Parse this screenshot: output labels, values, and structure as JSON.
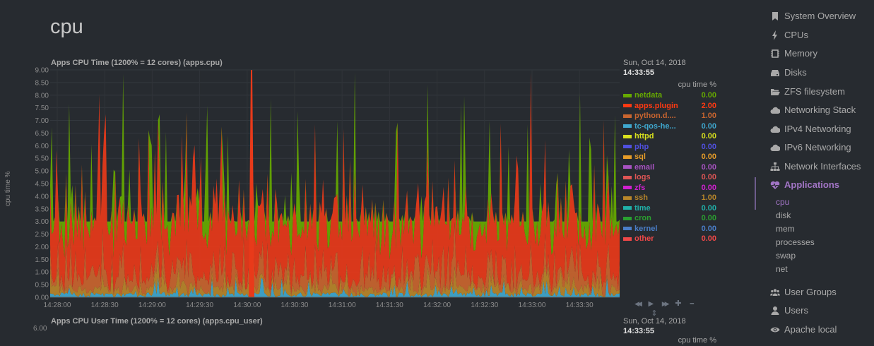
{
  "page": {
    "title": "cpu"
  },
  "charts": [
    {
      "title": "Apps CPU Time (1200% = 12 cores) (apps.cpu)",
      "ylabel": "cpu time %",
      "ylim": [
        0,
        9
      ],
      "yticks": [
        "0.00",
        "0.50",
        "1.00",
        "1.50",
        "2.00",
        "2.50",
        "3.00",
        "3.50",
        "4.00",
        "4.50",
        "5.00",
        "5.50",
        "6.00",
        "6.50",
        "7.00",
        "7.50",
        "8.00",
        "8.50",
        "9.00"
      ],
      "xticks": [
        "14:28:00",
        "14:28:30",
        "14:29:00",
        "14:29:30",
        "14:30:00",
        "14:30:30",
        "14:31:00",
        "14:31:30",
        "14:32:00",
        "14:32:30",
        "14:33:00",
        "14:33:30"
      ],
      "legend_date": "Sun, Oct 14, 2018",
      "legend_time": "14:33:55",
      "legend_units": "cpu time %"
    },
    {
      "title": "Apps CPU User Time (1200% = 12 cores) (apps.cpu_user)",
      "ytick_top": "6.00",
      "legend_date": "Sun, Oct 14, 2018",
      "legend_time": "14:33:55",
      "legend_units": "cpu time %"
    }
  ],
  "chart_data": {
    "type": "area",
    "title": "Apps CPU Time (1200% = 12 cores) (apps.cpu)",
    "ylabel": "cpu time %",
    "ylim": [
      0,
      9
    ],
    "x_range": [
      "14:28:00",
      "14:33:55"
    ],
    "stacked": true,
    "series": [
      {
        "name": "netdata",
        "color": "#66aa00",
        "current": "0.00"
      },
      {
        "name": "apps.plugin",
        "color": "#fe3912",
        "current": "2.00"
      },
      {
        "name": "python.d....",
        "color": "#c9652f",
        "current": "1.00"
      },
      {
        "name": "tc-qos-he...",
        "color": "#3fa8cf",
        "current": "0.00"
      },
      {
        "name": "httpd",
        "color": "#d8e01e",
        "current": "0.00"
      },
      {
        "name": "php",
        "color": "#5050e0",
        "current": "0.00"
      },
      {
        "name": "sql",
        "color": "#e69c28",
        "current": "0.00"
      },
      {
        "name": "email",
        "color": "#a852c2",
        "current": "0.00"
      },
      {
        "name": "logs",
        "color": "#de5555",
        "current": "0.00"
      },
      {
        "name": "zfs",
        "color": "#d020d0",
        "current": "0.00"
      },
      {
        "name": "ssh",
        "color": "#b8862a",
        "current": "1.00"
      },
      {
        "name": "time",
        "color": "#20b2aa",
        "current": "0.00"
      },
      {
        "name": "cron",
        "color": "#2aa030",
        "current": "0.00"
      },
      {
        "name": "kernel",
        "color": "#4a7ec8",
        "current": "0.00"
      },
      {
        "name": "other",
        "color": "#f04848",
        "current": "0.00"
      }
    ]
  },
  "controls": {
    "rewind": "◀◀",
    "play": "▶",
    "forward": "▶▶",
    "zoom_in": "✚",
    "zoom_out": "━",
    "resize": "⇕"
  },
  "sidebar": {
    "items": [
      {
        "label": "System Overview",
        "icon": "bookmark-icon"
      },
      {
        "label": "CPUs",
        "icon": "bolt-icon"
      },
      {
        "label": "Memory",
        "icon": "microchip-icon"
      },
      {
        "label": "Disks",
        "icon": "hdd-icon"
      },
      {
        "label": "ZFS filesystem",
        "icon": "folder-open-icon"
      },
      {
        "label": "Networking Stack",
        "icon": "cloud-icon"
      },
      {
        "label": "IPv4 Networking",
        "icon": "cloud-icon"
      },
      {
        "label": "IPv6 Networking",
        "icon": "cloud-icon"
      },
      {
        "label": "Network Interfaces",
        "icon": "sitemap-icon"
      },
      {
        "label": "Applications",
        "icon": "heartbeat-icon"
      },
      {
        "label": "User Groups",
        "icon": "users-icon"
      },
      {
        "label": "Users",
        "icon": "user-icon"
      },
      {
        "label": "Apache local",
        "icon": "eye-icon"
      }
    ],
    "sub_items": [
      "cpu",
      "disk",
      "mem",
      "processes",
      "swap",
      "net"
    ]
  }
}
